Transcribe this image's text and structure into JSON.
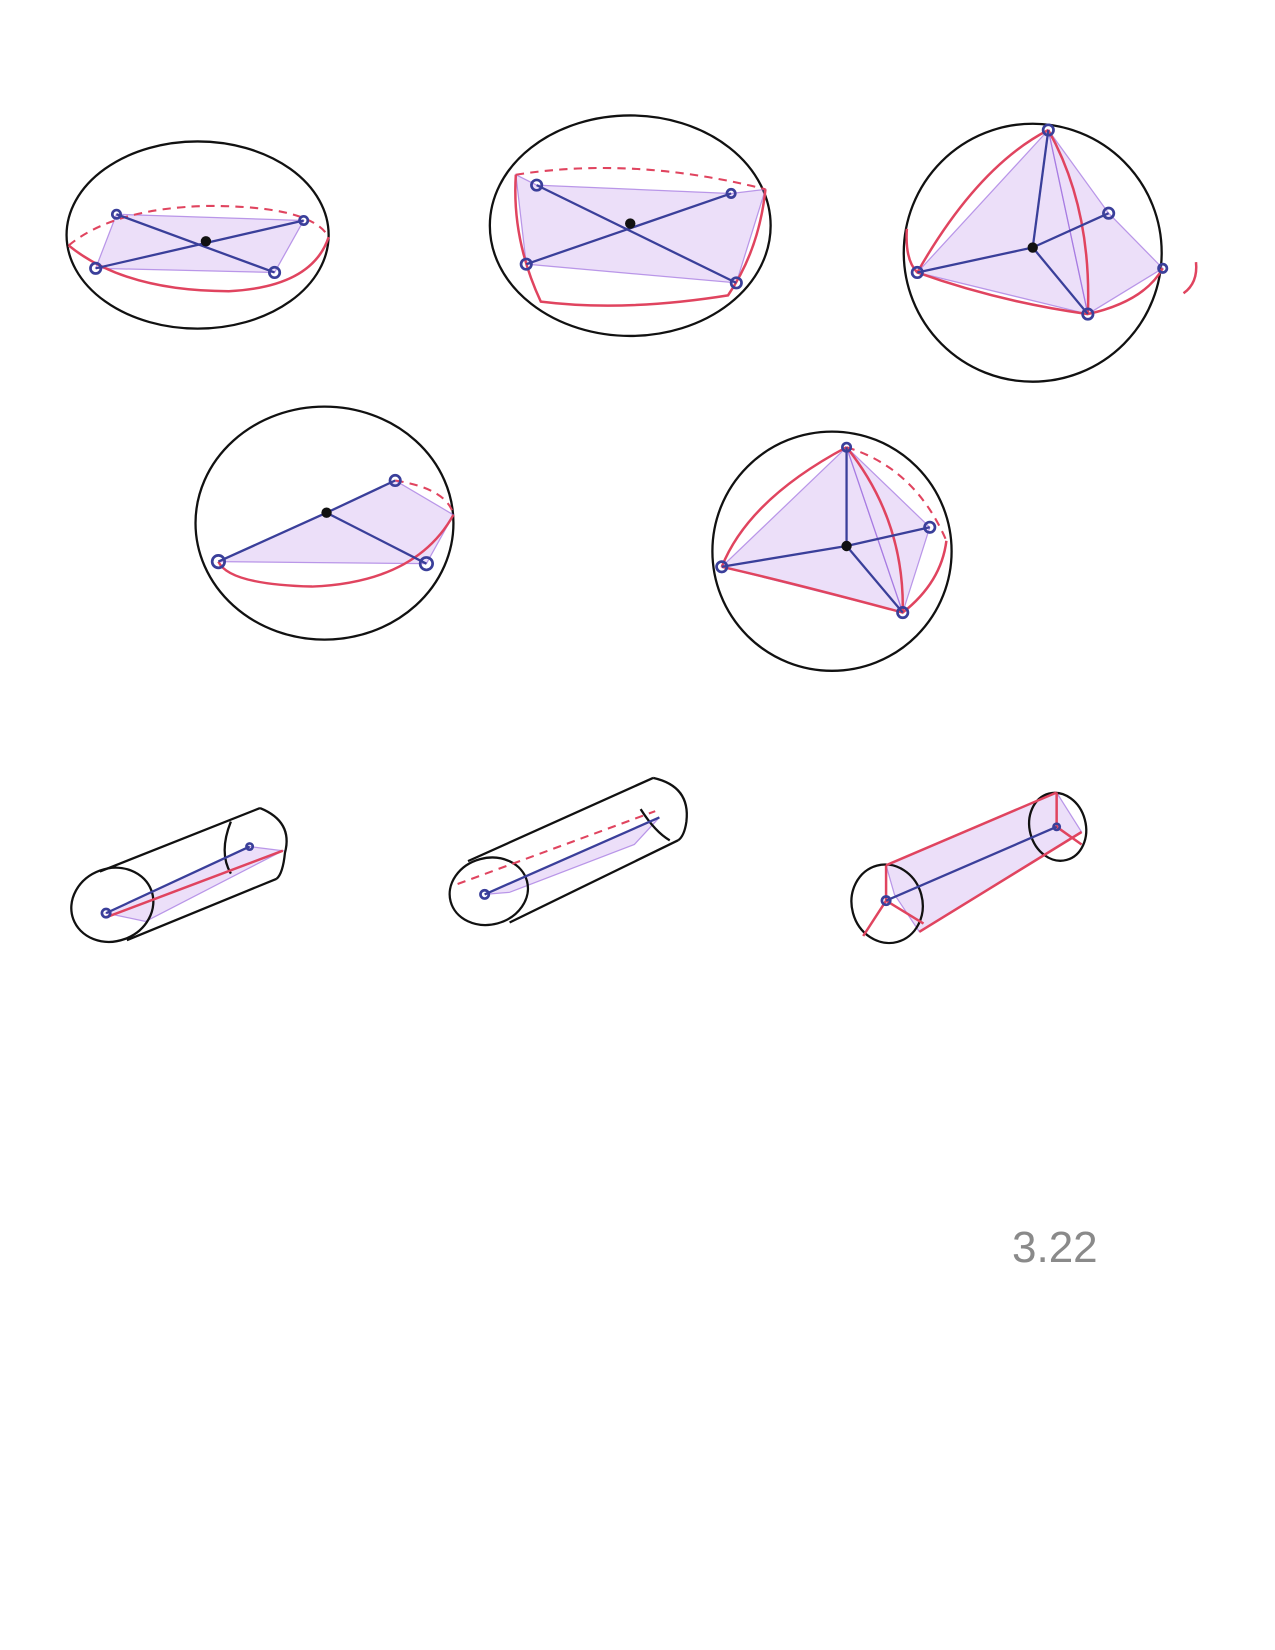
{
  "label": "3.22"
}
